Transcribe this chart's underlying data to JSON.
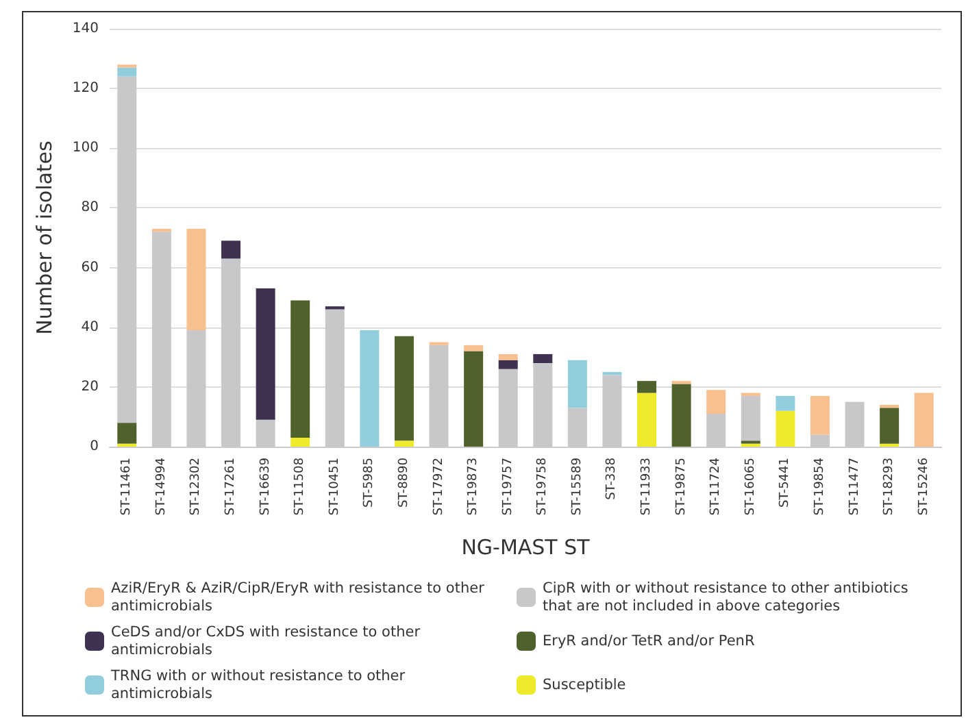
{
  "chart_data": {
    "type": "bar",
    "stacked": true,
    "xlabel": "NG-MAST ST",
    "ylabel": "Number of isolates",
    "categories": [
      "ST-11461",
      "ST-14994",
      "ST-12302",
      "ST-17261",
      "ST-16639",
      "ST-11508",
      "ST-10451",
      "ST-5985",
      "ST-8890",
      "ST-17972",
      "ST-19873",
      "ST-19757",
      "ST-19758",
      "ST-15589",
      "ST-338",
      "ST-11933",
      "ST-19875",
      "ST-11724",
      "ST-16065",
      "ST-5441",
      "ST-19854",
      "ST-11477",
      "ST-18293",
      "ST-15246"
    ],
    "series": [
      {
        "name": "Susceptible",
        "color": "#f0ea2d",
        "values": [
          1,
          0,
          0,
          0,
          0,
          3,
          0,
          0,
          2,
          0,
          0,
          0,
          0,
          0,
          0,
          18,
          0,
          0,
          1,
          12,
          0,
          0,
          1,
          0
        ]
      },
      {
        "name": "EryR and/or TetR and/or PenR",
        "color": "#4f622b",
        "values": [
          7,
          0,
          0,
          0,
          0,
          46,
          0,
          0,
          35,
          0,
          32,
          0,
          0,
          0,
          0,
          4,
          21,
          0,
          1,
          0,
          0,
          0,
          12,
          0
        ]
      },
      {
        "name": "CipR with or without resistance to other antibiotics that are not included in above categories",
        "color": "#c8c8ca",
        "values": [
          116,
          72,
          39,
          63,
          9,
          0,
          46,
          0,
          0,
          34,
          0,
          26,
          28,
          13,
          24,
          0,
          0,
          11,
          15,
          0,
          4,
          15,
          0,
          0
        ]
      },
      {
        "name": "CeDS and/or CxDS with resistance to other antimicrobials",
        "color": "#3f3150",
        "values": [
          0,
          0,
          0,
          6,
          44,
          0,
          1,
          0,
          0,
          0,
          0,
          3,
          3,
          0,
          0,
          0,
          0,
          0,
          0,
          0,
          0,
          0,
          0,
          0
        ]
      },
      {
        "name": "TRNG with or without resistance to other antimicrobials",
        "color": "#92cddd",
        "values": [
          3,
          0,
          0,
          0,
          0,
          0,
          0,
          39,
          0,
          0,
          0,
          0,
          0,
          16,
          1,
          0,
          0,
          0,
          0,
          5,
          0,
          0,
          0,
          0
        ]
      },
      {
        "name": "AziR/EryR & AziR/CipR/EryR with resistance to other antimicrobials",
        "color": "#f9c08f",
        "values": [
          1,
          1,
          34,
          0,
          0,
          0,
          0,
          0,
          0,
          1,
          2,
          2,
          0,
          0,
          0,
          0,
          1,
          8,
          1,
          0,
          13,
          0,
          1,
          18
        ]
      }
    ],
    "ylim": [
      0,
      140
    ],
    "yticks": [
      0,
      20,
      40,
      60,
      80,
      100,
      120,
      140
    ],
    "grid": "y",
    "legend": "bottom"
  }
}
